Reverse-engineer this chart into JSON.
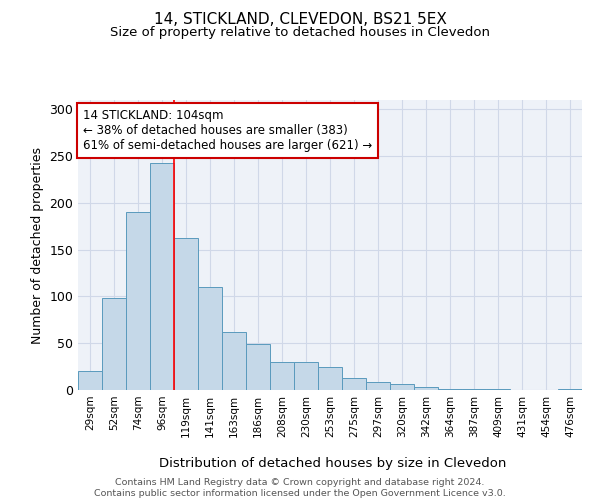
{
  "title1": "14, STICKLAND, CLEVEDON, BS21 5EX",
  "title2": "Size of property relative to detached houses in Clevedon",
  "xlabel": "Distribution of detached houses by size in Clevedon",
  "ylabel": "Number of detached properties",
  "categories": [
    "29sqm",
    "52sqm",
    "74sqm",
    "96sqm",
    "119sqm",
    "141sqm",
    "163sqm",
    "186sqm",
    "208sqm",
    "230sqm",
    "253sqm",
    "275sqm",
    "297sqm",
    "320sqm",
    "342sqm",
    "364sqm",
    "387sqm",
    "409sqm",
    "431sqm",
    "454sqm",
    "476sqm"
  ],
  "values": [
    20,
    98,
    190,
    243,
    162,
    110,
    62,
    49,
    30,
    30,
    25,
    13,
    9,
    6,
    3,
    1,
    1,
    1,
    0,
    0,
    1
  ],
  "bar_color": "#c5d8e8",
  "bar_edge_color": "#5a9abd",
  "grid_color": "#d0d8e8",
  "background_color": "#eef2f8",
  "annotation_box_text": "14 STICKLAND: 104sqm\n← 38% of detached houses are smaller (383)\n61% of semi-detached houses are larger (621) →",
  "annotation_box_color": "#ffffff",
  "annotation_box_edge_color": "#cc0000",
  "redline_x": 3.5,
  "footer": "Contains HM Land Registry data © Crown copyright and database right 2024.\nContains public sector information licensed under the Open Government Licence v3.0.",
  "ylim": [
    0,
    310
  ],
  "yticks": [
    0,
    50,
    100,
    150,
    200,
    250,
    300
  ]
}
